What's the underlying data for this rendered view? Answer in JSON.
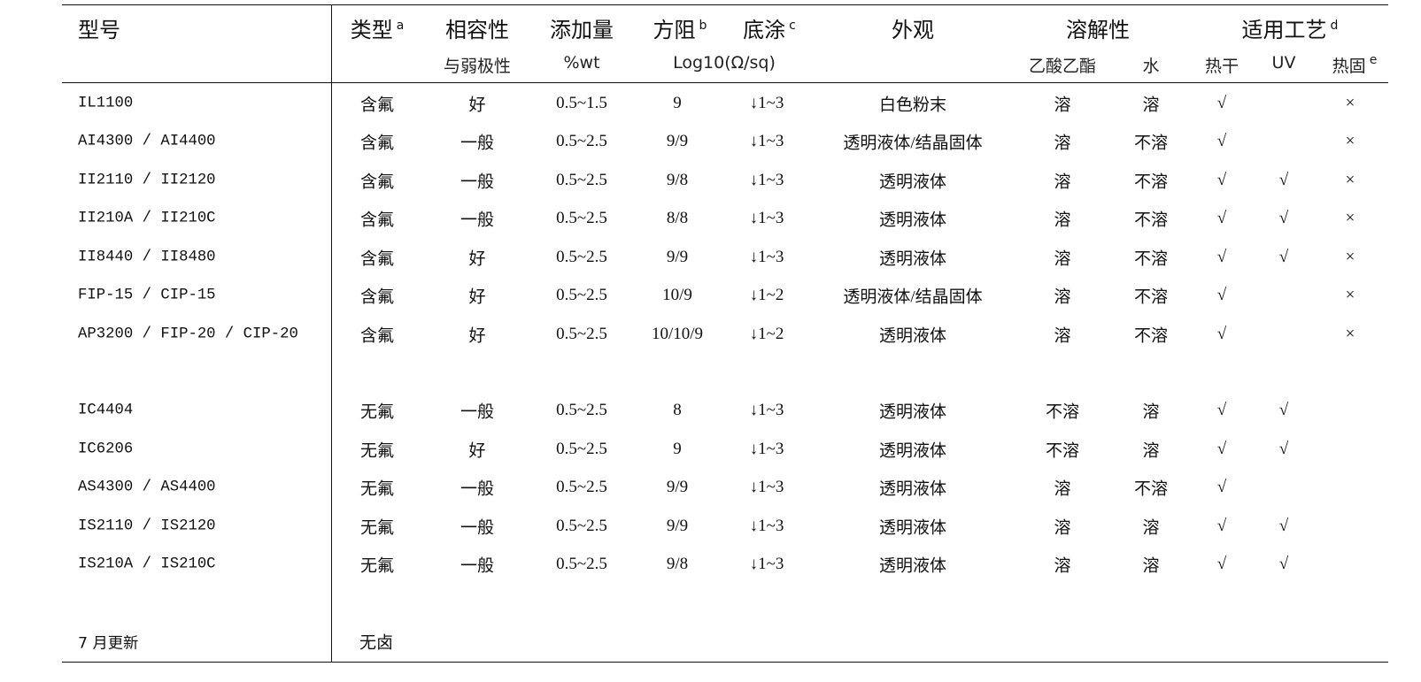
{
  "header": {
    "model": "型号",
    "type": "类型",
    "type_note": "a",
    "compat": "相容性",
    "compat_sub": "与弱极性",
    "amount": "添加量",
    "amount_sub": "%wt",
    "resist": "方阻",
    "resist_note": "b",
    "resist_sub": "Log10(Ω/sq)",
    "base": "底涂",
    "base_note": "c",
    "appearance": "外观",
    "solubility": "溶解性",
    "sol_ester": "乙酸乙酯",
    "sol_water": "水",
    "process": "适用工艺",
    "process_note": "d",
    "proc_hotdry": "热干",
    "proc_uv": "UV",
    "proc_hotfix": "热固",
    "proc_hotfix_note": "e"
  },
  "rows": [
    [
      "IL1100",
      "含氟",
      "好",
      "0.5~1.5",
      "9",
      "↓1~3",
      "白色粉末",
      "溶",
      "溶",
      "√",
      "",
      "×"
    ],
    [
      "AI4300 / AI4400",
      "含氟",
      "一般",
      "0.5~2.5",
      "9/9",
      "↓1~3",
      "透明液体/结晶固体",
      "溶",
      "不溶",
      "√",
      "",
      "×"
    ],
    [
      "II2110 / II2120",
      "含氟",
      "一般",
      "0.5~2.5",
      "9/8",
      "↓1~3",
      "透明液体",
      "溶",
      "不溶",
      "√",
      "√",
      "×"
    ],
    [
      "II210A / II210C",
      "含氟",
      "一般",
      "0.5~2.5",
      "8/8",
      "↓1~3",
      "透明液体",
      "溶",
      "不溶",
      "√",
      "√",
      "×"
    ],
    [
      "II8440 / II8480",
      "含氟",
      "好",
      "0.5~2.5",
      "9/9",
      "↓1~3",
      "透明液体",
      "溶",
      "不溶",
      "√",
      "√",
      "×"
    ],
    [
      "FIP-15 / CIP-15",
      "含氟",
      "好",
      "0.5~2.5",
      "10/9",
      "↓1~2",
      "透明液体/结晶固体",
      "溶",
      "不溶",
      "√",
      "",
      "×"
    ],
    [
      "AP3200 / FIP-20 / CIP-20",
      "含氟",
      "好",
      "0.5~2.5",
      "10/10/9",
      "↓1~2",
      "透明液体",
      "溶",
      "不溶",
      "√",
      "",
      "×"
    ],
    [
      "IC4404",
      "无氟",
      "一般",
      "0.5~2.5",
      "8",
      "↓1~3",
      "透明液体",
      "不溶",
      "溶",
      "√",
      "√",
      ""
    ],
    [
      "IC6206",
      "无氟",
      "好",
      "0.5~2.5",
      "9",
      "↓1~3",
      "透明液体",
      "不溶",
      "溶",
      "√",
      "√",
      ""
    ],
    [
      "AS4300 / AS4400",
      "无氟",
      "一般",
      "0.5~2.5",
      "9/9",
      "↓1~3",
      "透明液体",
      "溶",
      "不溶",
      "√",
      "",
      ""
    ],
    [
      "IS2110 / IS2120",
      "无氟",
      "一般",
      "0.5~2.5",
      "9/9",
      "↓1~3",
      "透明液体",
      "溶",
      "溶",
      "√",
      "√",
      ""
    ],
    [
      "IS210A / IS210C",
      "无氟",
      "一般",
      "0.5~2.5",
      "9/8",
      "↓1~3",
      "透明液体",
      "溶",
      "溶",
      "√",
      "√",
      ""
    ],
    [
      "7 月更新",
      "无卤",
      "",
      "",
      "",
      "",
      "",
      "",
      "",
      "",
      "",
      ""
    ]
  ]
}
